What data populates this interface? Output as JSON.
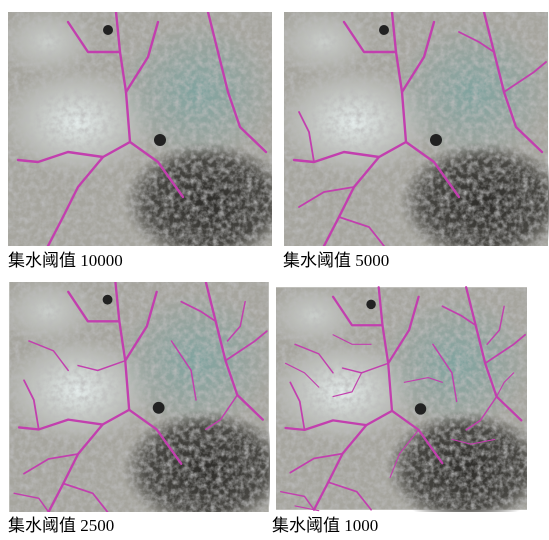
{
  "panels": [
    {
      "caption": "集水阈值 10000"
    },
    {
      "caption": "集水阈值 5000"
    },
    {
      "caption": "集水阈值 2500"
    },
    {
      "caption": "集水阈值 1000"
    }
  ]
}
